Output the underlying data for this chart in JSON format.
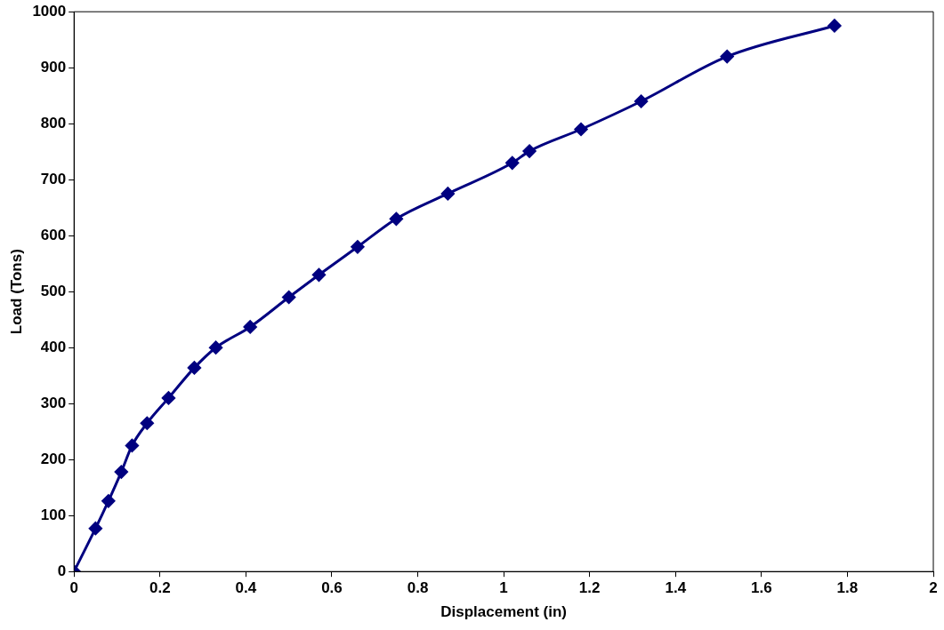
{
  "chart_data": {
    "type": "line",
    "xlabel": "Displacement (in)",
    "ylabel": "Load (Tons)",
    "series": [
      {
        "color": "#000080",
        "x": [
          0,
          0.05,
          0.08,
          0.11,
          0.135,
          0.17,
          0.22,
          0.28,
          0.33,
          0.41,
          0.5,
          0.57,
          0.66,
          0.75,
          0.87,
          1.02,
          1.06,
          1.18,
          1.32,
          1.52,
          1.77
        ],
        "values": [
          0,
          77,
          126,
          178,
          225,
          265,
          310,
          364,
          400,
          437,
          490,
          530,
          580,
          630,
          675,
          730,
          751,
          790,
          840,
          920,
          975
        ]
      }
    ],
    "xlim": [
      0,
      2
    ],
    "xticks": [
      0,
      0.2,
      0.4,
      0.6,
      0.8,
      1,
      1.2,
      1.4,
      1.6,
      1.8,
      2
    ],
    "ylim": [
      0,
      1000
    ],
    "yticks": [
      0,
      100,
      200,
      300,
      400,
      500,
      600,
      700,
      800,
      900,
      1000
    ],
    "grid": false,
    "legend": false,
    "marker": "diamond",
    "line_style": "solid"
  }
}
